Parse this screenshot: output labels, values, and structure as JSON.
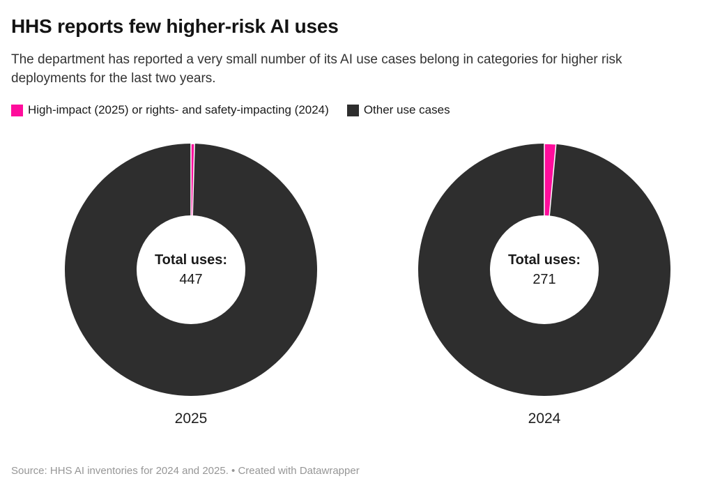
{
  "header": {
    "title": "HHS reports few higher-risk AI uses",
    "subtitle": "The department has reported a very small number of its AI use cases belong in categories for higher risk deployments for the last two years."
  },
  "legend": {
    "items": [
      {
        "label": "High-impact (2025) or rights- and safety-impacting (2024)",
        "color": "#ff0d9c"
      },
      {
        "label": "Other use cases",
        "color": "#2e2e2e"
      }
    ]
  },
  "chart_data": [
    {
      "type": "pie",
      "variant": "donut",
      "label": "2025",
      "center_label": "Total uses:",
      "total": 447,
      "values_estimated_from_arc_angles": true,
      "slices": [
        {
          "name": "High-impact (2025) or rights- and safety-impacting (2024)",
          "value": 2,
          "color": "#ff0d9c"
        },
        {
          "name": "Other use cases",
          "value": 445,
          "color": "#2e2e2e"
        }
      ]
    },
    {
      "type": "pie",
      "variant": "donut",
      "label": "2024",
      "center_label": "Total uses:",
      "total": 271,
      "values_estimated_from_arc_angles": true,
      "slices": [
        {
          "name": "High-impact (2025) or rights- and safety-impacting (2024)",
          "value": 4,
          "color": "#ff0d9c"
        },
        {
          "name": "Other use cases",
          "value": 267,
          "color": "#2e2e2e"
        }
      ]
    }
  ],
  "footer": {
    "text": "Source: HHS AI inventories for 2024 and 2025. • Created with Datawrapper"
  }
}
